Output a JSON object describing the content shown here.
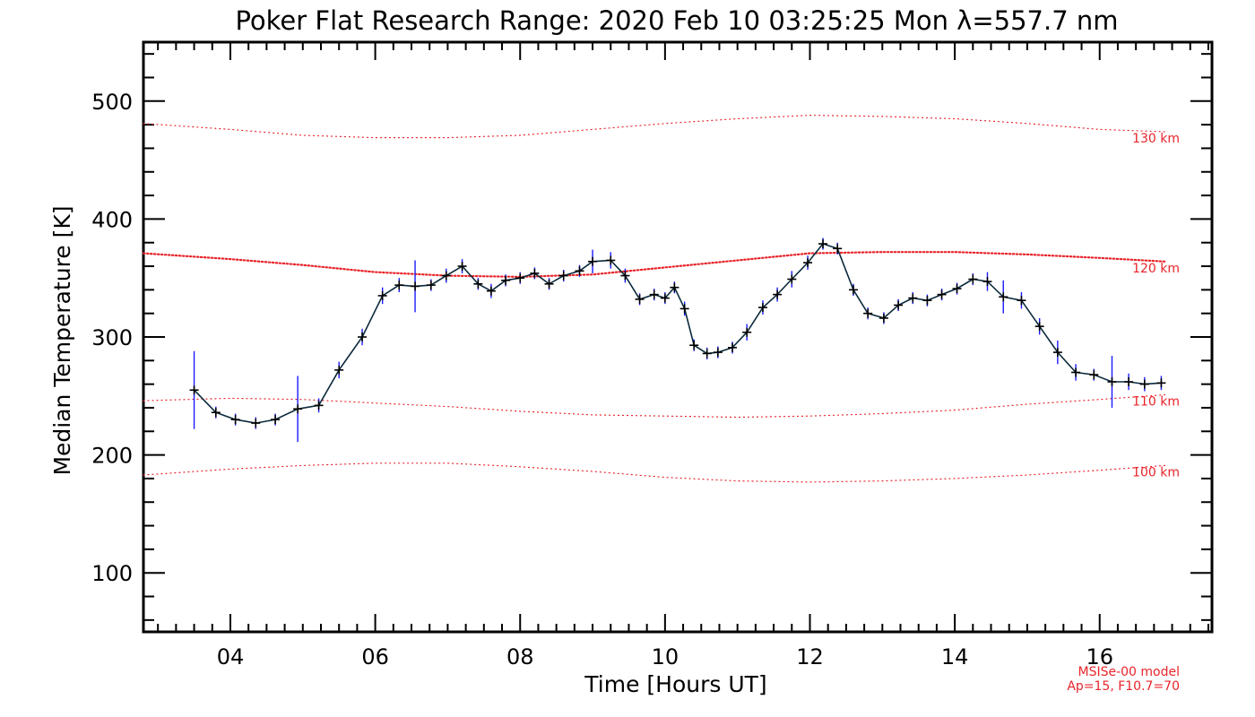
{
  "colors": {
    "data_line": "#0b2a3c",
    "error_bar": "#1a1aff",
    "point_marker": "#000000",
    "model_curve": "#e8242a",
    "axis": "#000000",
    "background": "#ffffff"
  },
  "chart_data": {
    "type": "line",
    "title": "Poker Flat Research Range: 2020 Feb 10 03:25:25 Mon λ=557.7 nm",
    "xlabel": "Time [Hours UT]",
    "ylabel": "Median Temperature [K]",
    "xlim": [
      2.8,
      17.55
    ],
    "ylim": [
      50,
      550
    ],
    "x_ticks": [
      4,
      6,
      8,
      10,
      12,
      14,
      16
    ],
    "x_tick_labels": [
      "04",
      "06",
      "08",
      "10",
      "12",
      "14",
      "16"
    ],
    "y_ticks": [
      100,
      200,
      300,
      400,
      500
    ],
    "y_tick_labels": [
      "100",
      "200",
      "300",
      "400",
      "500"
    ],
    "grid": false,
    "series": [
      {
        "kind": "measurement",
        "x": [
          3.5,
          3.8,
          4.07,
          4.35,
          4.62,
          4.93,
          5.22,
          5.5,
          5.82,
          6.1,
          6.33,
          6.55,
          6.77,
          6.98,
          7.2,
          7.42,
          7.6,
          7.8,
          8.0,
          8.2,
          8.4,
          8.6,
          8.82,
          9.0,
          9.25,
          9.45,
          9.65,
          9.85,
          10.0,
          10.13,
          10.27,
          10.4,
          10.58,
          10.73,
          10.93,
          11.13,
          11.35,
          11.55,
          11.75,
          11.97,
          12.18,
          12.38,
          12.6,
          12.8,
          13.02,
          13.22,
          13.42,
          13.62,
          13.82,
          14.03,
          14.25,
          14.45,
          14.67,
          14.92,
          15.17,
          15.42,
          15.67,
          15.92,
          16.17,
          16.4,
          16.62,
          16.85
        ],
        "y": [
          255,
          236,
          230,
          227,
          230,
          239,
          242,
          272,
          300,
          335,
          344,
          343,
          344,
          352,
          360,
          345,
          339,
          348,
          350,
          354,
          345,
          352,
          356,
          364,
          365,
          352,
          332,
          336,
          333,
          342,
          324,
          293,
          286,
          287,
          291,
          304,
          325,
          336,
          349,
          363,
          379,
          375,
          340,
          320,
          316,
          327,
          333,
          331,
          336,
          341,
          349,
          347,
          334,
          331,
          309,
          287,
          270,
          268,
          262,
          262,
          260,
          261
        ],
        "err": [
          33,
          5,
          5,
          5,
          5,
          28,
          6,
          7,
          7,
          7,
          6,
          22,
          5,
          6,
          6,
          5,
          6,
          5,
          5,
          5,
          5,
          5,
          5,
          10,
          7,
          6,
          5,
          5,
          5,
          5,
          6,
          5,
          5,
          5,
          5,
          7,
          6,
          6,
          7,
          6,
          5,
          5,
          5,
          5,
          5,
          5,
          5,
          5,
          5,
          5,
          5,
          8,
          14,
          7,
          7,
          10,
          7,
          5,
          22,
          7,
          6,
          6
        ]
      },
      {
        "kind": "model",
        "label": "130 km",
        "style": "sparse",
        "x": [
          2.8,
          4.0,
          5.0,
          6.0,
          7.0,
          8.0,
          9.0,
          10.0,
          11.0,
          12.0,
          13.0,
          14.0,
          15.0,
          16.0,
          16.9
        ],
        "y": [
          481,
          476,
          471,
          469,
          469,
          471,
          476,
          481,
          485,
          488,
          487,
          485,
          481,
          476,
          474
        ]
      },
      {
        "kind": "model",
        "label": "120 km",
        "style": "dense",
        "x": [
          2.8,
          4.0,
          5.0,
          6.0,
          7.0,
          8.0,
          9.0,
          10.0,
          11.0,
          12.0,
          13.0,
          14.0,
          15.0,
          16.0,
          16.9
        ],
        "y": [
          371,
          366,
          361,
          355,
          352,
          351,
          353,
          359,
          365,
          371,
          372,
          372,
          370,
          367,
          364
        ]
      },
      {
        "kind": "model",
        "label": "110 km",
        "style": "sparse",
        "x": [
          2.8,
          4.0,
          5.0,
          6.0,
          7.0,
          8.0,
          9.0,
          10.0,
          11.0,
          12.0,
          13.0,
          14.0,
          15.0,
          16.0,
          16.9
        ],
        "y": [
          246,
          248,
          247,
          244,
          241,
          237,
          234,
          233,
          232,
          233,
          235,
          238,
          243,
          247,
          251
        ]
      },
      {
        "kind": "model",
        "label": "100 km",
        "style": "sparse",
        "x": [
          2.8,
          4.0,
          5.0,
          6.0,
          7.0,
          8.0,
          9.0,
          10.0,
          11.0,
          12.0,
          13.0,
          14.0,
          15.0,
          16.0,
          16.9
        ],
        "y": [
          183,
          188,
          191,
          193,
          193,
          190,
          186,
          181,
          178,
          177,
          178,
          180,
          183,
          187,
          191
        ]
      }
    ],
    "model_notes": [
      "MSISe-00 model",
      "Ap=15, F10.7=70"
    ]
  }
}
